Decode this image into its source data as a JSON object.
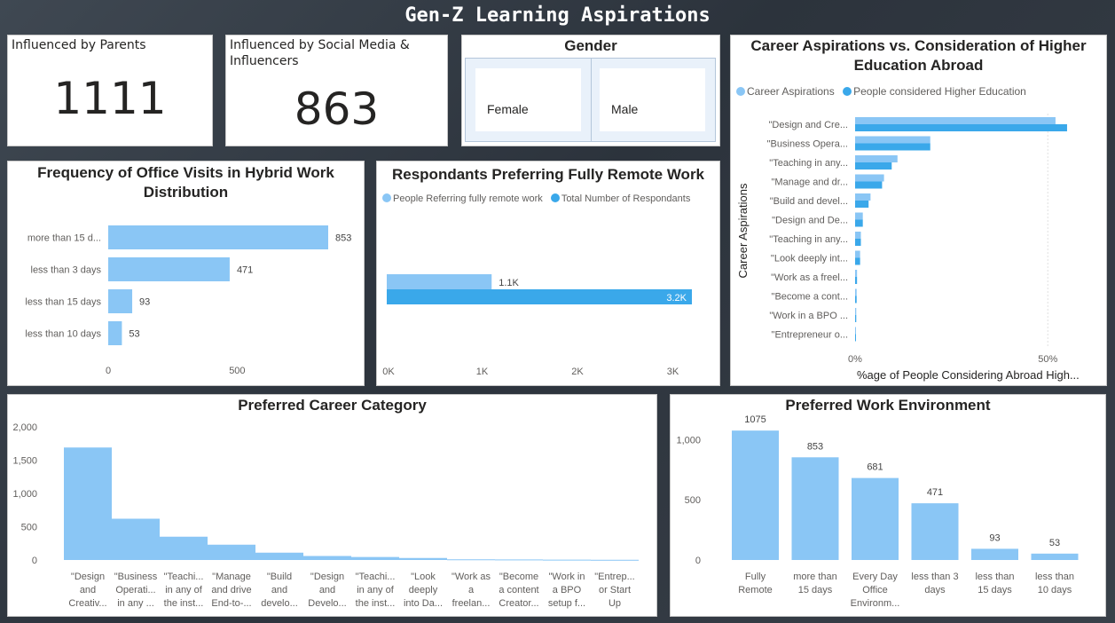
{
  "page": {
    "title": "Gen-Z Learning Aspirations"
  },
  "kpi_parents": {
    "label": "Influenced by Parents",
    "value": "1111"
  },
  "kpi_social": {
    "label": "Influenced by Social Media & Influencers",
    "value": "863"
  },
  "gender": {
    "title": "Gender",
    "options": [
      "Female",
      "Male"
    ]
  },
  "colors": {
    "light": "#8ac6f5",
    "dark": "#3aa8ea",
    "grid": "#e1e1e1",
    "axis_text": "#605e5c"
  },
  "chart_data": [
    {
      "id": "office_visits",
      "type": "bar",
      "orientation": "horizontal",
      "title": "Frequency of Office Visits in Hybrid Work Distribution",
      "categories": [
        "more than 15 d...",
        "less than 3 days",
        "less than 15 days",
        "less than 10 days"
      ],
      "values": [
        853,
        471,
        93,
        53
      ],
      "data_labels": [
        "853",
        "471",
        "93",
        "53"
      ],
      "xlim": [
        0,
        853
      ],
      "xticks": [
        0,
        500
      ],
      "xtick_labels": [
        "0",
        "500"
      ]
    },
    {
      "id": "remote_work",
      "type": "bar",
      "orientation": "horizontal",
      "title": "Respondants Preferring Fully Remote Work",
      "series": [
        {
          "name": "People Referring fully remote work",
          "values": [
            1100
          ],
          "label": "1.1K"
        },
        {
          "name": "Total Number of Respondants",
          "values": [
            3200
          ],
          "label": "3.2K"
        }
      ],
      "xlim": [
        0,
        3200
      ],
      "xticks": [
        0,
        1000,
        2000,
        3000
      ],
      "xtick_labels": [
        "0K",
        "1K",
        "2K",
        "3K"
      ]
    },
    {
      "id": "career_abroad",
      "type": "bar",
      "orientation": "horizontal",
      "title": "Career Aspirations vs. Consideration of Higher Education Abroad",
      "ylabel": "Career Aspirations",
      "xlabel": "%age of People Considering Abroad High...",
      "categories": [
        "\"Design and Cre...",
        "\"Business Opera...",
        "\"Teaching in any...",
        "\"Manage and dr...",
        "\"Build and devel...",
        "\"Design and De...",
        "\"Teaching in any...",
        "\"Look deeply int...",
        "\"Work as a freel...",
        "\"Become a cont...",
        "\"Work in a BPO ...",
        "\"Entrepreneur o..."
      ],
      "series": [
        {
          "name": "Career Aspirations",
          "values": [
            52,
            19.5,
            11,
            7.5,
            4,
            2,
            1.5,
            1.3,
            0.5,
            0.4,
            0.3,
            0.2
          ]
        },
        {
          "name": "People considered Higher Education",
          "values": [
            55,
            19.5,
            9.5,
            7,
            3.5,
            2,
            1.5,
            1.3,
            0.5,
            0.4,
            0.3,
            0.2
          ]
        }
      ],
      "xlim": [
        0,
        58
      ],
      "xticks": [
        0,
        50
      ],
      "xtick_labels": [
        "0%",
        "50%"
      ],
      "grid": true
    },
    {
      "id": "career_category",
      "type": "bar",
      "title": "Preferred Career Category",
      "categories": [
        [
          "\"Design",
          "and",
          "Creativ..."
        ],
        [
          "\"Business",
          "Operati...",
          "in any ..."
        ],
        [
          "\"Teachi...",
          "in any of",
          "the inst..."
        ],
        [
          "\"Manage",
          "and drive",
          "End-to-..."
        ],
        [
          "\"Build",
          "and",
          "develo..."
        ],
        [
          "\"Design",
          "and",
          "Develo..."
        ],
        [
          "\"Teachi...",
          "in any of",
          "the inst..."
        ],
        [
          "\"Look",
          "deeply",
          "into Da..."
        ],
        [
          "\"Work as",
          "a",
          "freelan..."
        ],
        [
          "\"Become",
          "a content",
          "Creator..."
        ],
        [
          "\"Work in",
          "a BPO",
          "setup f..."
        ],
        [
          "\"Entrep...",
          "or Start",
          "Up"
        ]
      ],
      "values": [
        1690,
        620,
        350,
        230,
        110,
        60,
        45,
        30,
        10,
        8,
        5,
        3
      ],
      "ylim": [
        0,
        2000
      ],
      "yticks": [
        0,
        500,
        1000,
        1500,
        2000
      ],
      "ytick_labels": [
        "0",
        "500",
        "1,000",
        "1,500",
        "2,000"
      ]
    },
    {
      "id": "work_environment",
      "type": "bar",
      "title": "Preferred Work Environment",
      "categories": [
        [
          "Fully",
          "Remote"
        ],
        [
          "more than",
          "15 days"
        ],
        [
          "Every Day",
          "Office",
          "Environm..."
        ],
        [
          "less than 3",
          "days"
        ],
        [
          "less than",
          "15 days"
        ],
        [
          "less than",
          "10 days"
        ]
      ],
      "values": [
        1075,
        853,
        681,
        471,
        93,
        53
      ],
      "data_labels": [
        "1075",
        "853",
        "681",
        "471",
        "93",
        "53"
      ],
      "ylim": [
        0,
        1150
      ],
      "yticks": [
        0,
        500,
        1000
      ],
      "ytick_labels": [
        "0",
        "500",
        "1,000"
      ]
    }
  ]
}
